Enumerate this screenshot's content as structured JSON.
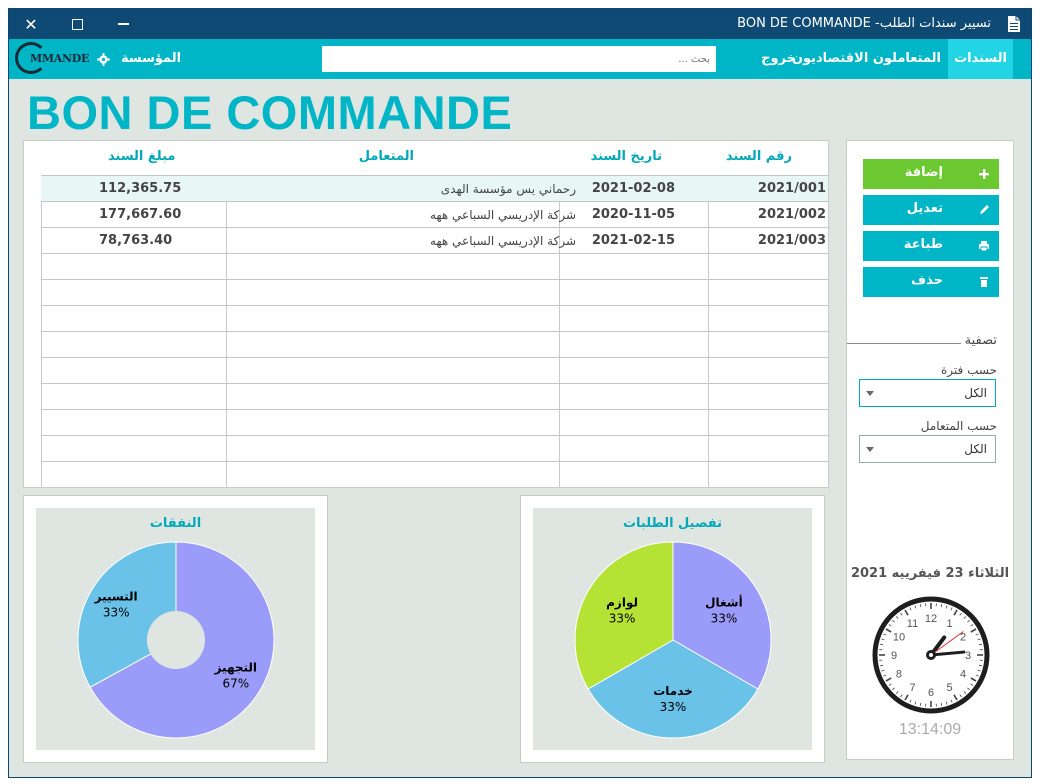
{
  "window": {
    "title": "تسيير سندات الطلب- BON DE COMMANDE",
    "close_glyph": "✕"
  },
  "nav": {
    "items": [
      {
        "label": "السندات",
        "active": true
      },
      {
        "label": "المتعاملون الاقتصاديون"
      },
      {
        "label": "خروج"
      }
    ],
    "search_placeholder": "بحث ...",
    "company_label": "المؤسسة",
    "logo_text": "MMANDE"
  },
  "page": {
    "title": "BON DE COMMANDE"
  },
  "table": {
    "headers": {
      "number": "رقم السند",
      "date": "تاريخ السند",
      "client": "المتعامل",
      "amount": "مبلغ السند"
    },
    "rows": [
      {
        "number": "2021/001",
        "date": "2021-02-08",
        "client": "رحماني يس مؤسسة الهدى",
        "amount": "112,365.75"
      },
      {
        "number": "2021/002",
        "date": "2020-11-05",
        "client": "شركة الإدريسي السباعي ههه",
        "amount": "177,667.60"
      },
      {
        "number": "2021/003",
        "date": "2021-02-15",
        "client": "شركة الإدريسي السباعي ههه",
        "amount": "78,763.40"
      }
    ]
  },
  "actions": {
    "add": "إضافة",
    "edit": "تعديل",
    "print": "طباعة",
    "delete": "حذف"
  },
  "filters": {
    "title": "تصفية",
    "period_label": "حسب فترة",
    "period_value": "الكل",
    "client_label": "حسب المتعامل",
    "client_value": "الكل"
  },
  "clock": {
    "date": "الثلاثاء 23 فيفرييه 2021",
    "time": "13:14:09",
    "numbers": [
      "12",
      "1",
      "2",
      "3",
      "4",
      "5",
      "6",
      "7",
      "8",
      "9",
      "10",
      "11"
    ]
  },
  "colors": {
    "accent": "#00b5c5",
    "purple": "#9b9bfa",
    "blue": "#6ac2e8",
    "lime": "#b5e234",
    "green": "#6cc830"
  },
  "charts": {
    "expenses": {
      "title": "النفقات",
      "type": "pie",
      "slices": [
        {
          "label": "التجهيز",
          "value": 67,
          "pct": "67%",
          "color": "#9b9bfa"
        },
        {
          "label": "التسيير",
          "value": 33,
          "pct": "33%",
          "color": "#6ac2e8"
        }
      ]
    },
    "orders": {
      "title": "تفصيل الطلبات",
      "type": "pie",
      "slices": [
        {
          "label": "أشغال",
          "value": 33,
          "pct": "33%",
          "color": "#9b9bfa"
        },
        {
          "label": "خدمات",
          "value": 33,
          "pct": "33%",
          "color": "#6ac2e8"
        },
        {
          "label": "لوازم",
          "value": 33,
          "pct": "33%",
          "color": "#b5e234"
        }
      ]
    }
  }
}
